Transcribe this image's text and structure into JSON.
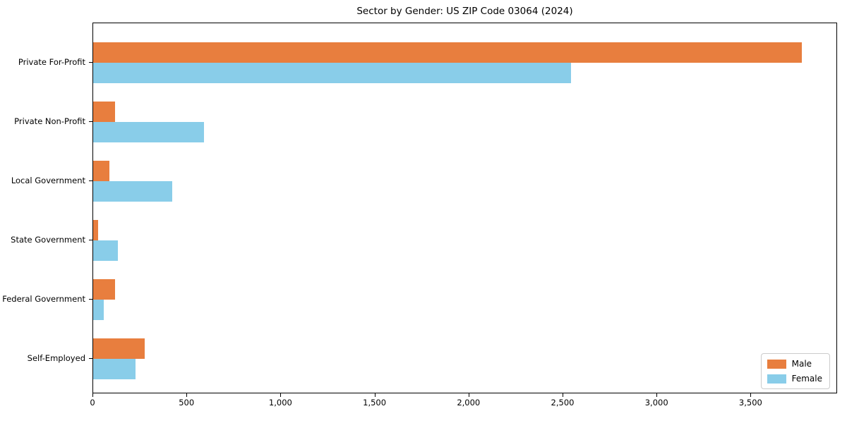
{
  "chart_data": {
    "type": "bar",
    "orientation": "horizontal",
    "title": "Sector by Gender: US ZIP Code 03064 (2024)",
    "xlabel": "",
    "ylabel": "",
    "categories": [
      "Private For-Profit",
      "Private Non-Profit",
      "Local Government",
      "State Government",
      "Federal Government",
      "Self-Employed"
    ],
    "series": [
      {
        "name": "Male",
        "color": "#e87e3e",
        "values": [
          3770,
          115,
          85,
          25,
          115,
          275
        ]
      },
      {
        "name": "Female",
        "color": "#89cde9",
        "values": [
          2540,
          590,
          420,
          130,
          55,
          225
        ]
      }
    ],
    "xlim": [
      0,
      3960
    ],
    "xticks": [
      0,
      500,
      1000,
      1500,
      2000,
      2500,
      3000,
      3500
    ],
    "xtick_labels": [
      "0",
      "500",
      "1,000",
      "1,500",
      "2,000",
      "2,500",
      "3,000",
      "3,500"
    ],
    "grid": false,
    "legend": {
      "position": "lower right",
      "entries": [
        "Male",
        "Female"
      ]
    },
    "colors": {
      "background": "#ffffff",
      "axis": "#000000",
      "legend_border": "#cccccc"
    }
  }
}
